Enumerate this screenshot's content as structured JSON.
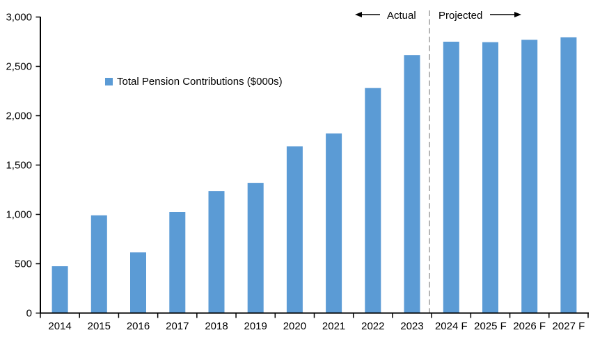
{
  "chart_data": {
    "type": "bar",
    "title": "",
    "categories": [
      "2014",
      "2015",
      "2016",
      "2017",
      "2018",
      "2019",
      "2020",
      "2021",
      "2022",
      "2023",
      "2024 F",
      "2025 F",
      "2026 F",
      "2027 F"
    ],
    "series": [
      {
        "name": "Total Pension Contributions ($000s)",
        "values": [
          475,
          990,
          615,
          1025,
          1235,
          1320,
          1690,
          1820,
          2280,
          2615,
          2750,
          2745,
          2770,
          2795
        ]
      }
    ],
    "xlabel": "",
    "ylabel": "",
    "ylim": [
      0,
      3000
    ],
    "ytick_step": 500,
    "ytick_labels": [
      "0",
      "500",
      "1,000",
      "1,500",
      "2,000",
      "2,500",
      "3,000"
    ],
    "grid": false,
    "legend": {
      "label": "Total Pension Contributions ($000s)",
      "position": "inside-upper-left"
    },
    "annotations": {
      "actual_label": "Actual",
      "projected_label": "Projected",
      "divider_after_category": "2023",
      "divider_style": "dashed"
    }
  },
  "colors": {
    "bar": "#5B9BD5",
    "divider": "#A6A6A6",
    "axis": "#000000",
    "text": "#000000"
  }
}
